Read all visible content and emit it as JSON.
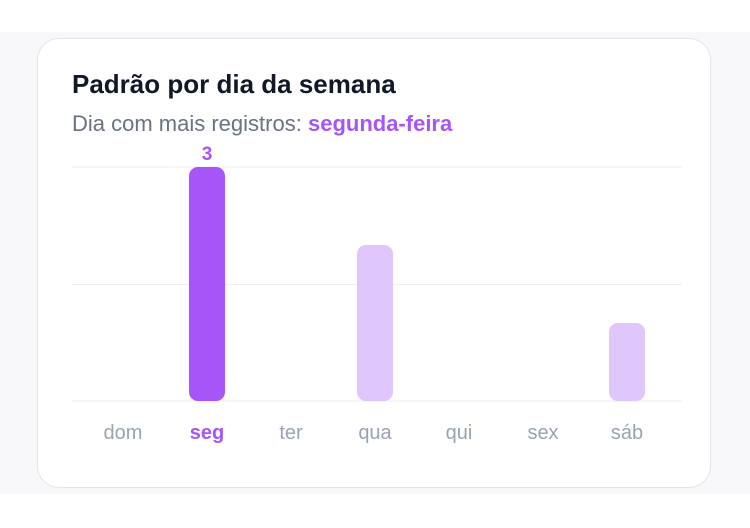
{
  "card": {
    "title": "Padrão por dia da semana",
    "subtitle_prefix": "Dia com mais registros:",
    "subtitle_highlight": "segunda-feira"
  },
  "colors": {
    "accent": "#a855f7",
    "bar_muted": "#dfc6fb",
    "tick_text": "#9aa3b2",
    "grid": "#eeeef2"
  },
  "chart_data": {
    "type": "bar",
    "categories": [
      "dom",
      "seg",
      "ter",
      "qua",
      "qui",
      "sex",
      "sáb"
    ],
    "values": [
      0,
      3,
      0,
      2,
      0,
      0,
      1
    ],
    "highlight_index": 1,
    "data_labels": [
      "",
      "3",
      "",
      "",
      "",
      "",
      ""
    ],
    "ylim": [
      0,
      3
    ],
    "grid": true,
    "title": "",
    "xlabel": "",
    "ylabel": ""
  }
}
